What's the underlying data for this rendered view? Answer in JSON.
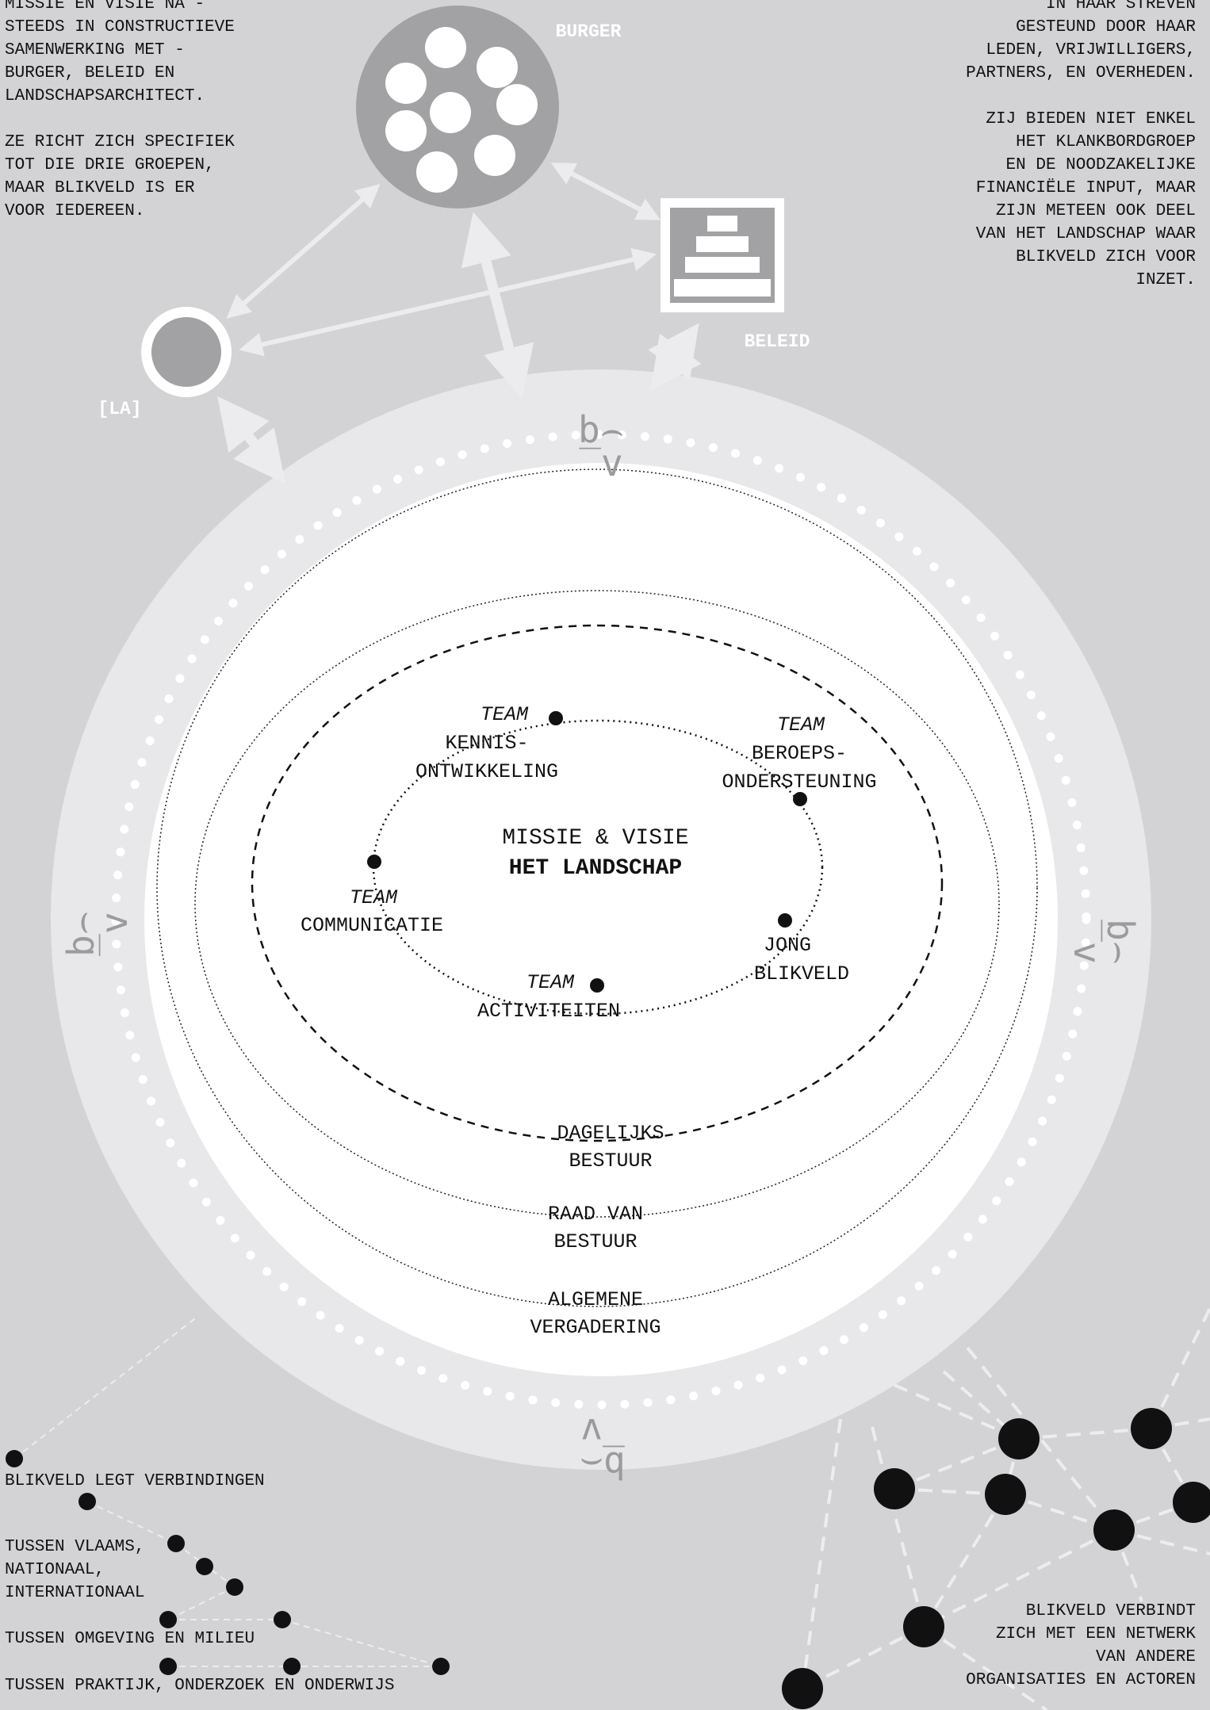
{
  "intro_left": {
    "paragraph1": [
      "MISSIE EN VISIE NA -",
      "STEEDS IN CONSTRUCTIEVE",
      "SAMENWERKING MET -",
      "BURGER, BELEID EN",
      "LANDSCHAPSARCHITECT."
    ],
    "paragraph2": [
      "ZE RICHT ZICH SPECIFIEK",
      "TOT DIE DRIE GROEPEN,",
      "MAAR BLIKVELD IS ER",
      "VOOR IEDEREEN."
    ]
  },
  "intro_right": {
    "paragraph1": [
      "IN HAAR STREVEN",
      "GESTEUND DOOR HAAR",
      "LEDEN, VRIJWILLIGERS,",
      "PARTNERS, EN OVERHEDEN."
    ],
    "paragraph2": [
      "ZIJ BIEDEN NIET ENKEL",
      "HET KLANKBORDGROEP",
      "EN DE NOODZAKELIJKE",
      "FINANCIËLE INPUT, MAAR",
      "ZIJN METEEN OOK DEEL",
      "VAN HET LANDSCHAP WAAR",
      "BLIKVELD ZICH VOOR",
      "INZET."
    ]
  },
  "actors": {
    "burger": "BURGER",
    "beleid": "BELEID",
    "la": "[LA]"
  },
  "logo_glyph": {
    "top": "b⌢",
    "bottom": "‾v"
  },
  "center": {
    "mission": "MISSIE & VISIE",
    "landscape": "HET LANDSCHAP"
  },
  "teams": {
    "team_word": "TEAM",
    "kennis": [
      "KENNIS-",
      "ONTWIKKELING"
    ],
    "beroeps": [
      "BEROEPS-",
      "ONDERSTEUNING"
    ],
    "communicatie": "COMMUNICATIE",
    "activiteiten": "ACTIVITEITEN",
    "jong": [
      "JONG",
      "BLIKVELD"
    ]
  },
  "bodies": {
    "dagelijks": [
      "DAGELIJKS",
      "BESTUUR"
    ],
    "raad": [
      "RAAD VAN",
      "BESTUUR"
    ],
    "algemene": [
      "ALGEMENE",
      "VERGADERING"
    ]
  },
  "connections_left": {
    "heading": "BLIKVELD LEGT VERBINDINGEN",
    "level1": [
      "TUSSEN VLAAMS,",
      "NATIONAAL,",
      "INTERNATIONAAL"
    ],
    "level2": "TUSSEN OMGEVING EN MILIEU",
    "level3": "TUSSEN PRAKTIJK, ONDERZOEK EN ONDERWIJS"
  },
  "network_right": [
    "BLIKVELD VERBINDT",
    "ZICH MET EEN NETWERK",
    "VAN ANDERE",
    "ORGANISATIES EN ACTOREN"
  ],
  "colors": {
    "background": "#d3d3d5",
    "outer_ring": "#e8e8ea",
    "inner_disc": "#ffffff",
    "actor_grey": "#a2a2a4",
    "ink": "#111111"
  }
}
